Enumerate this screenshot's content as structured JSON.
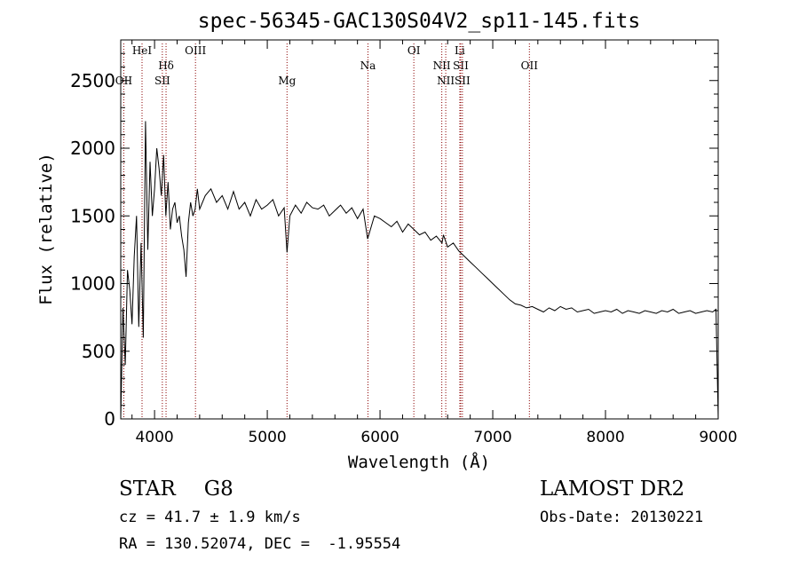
{
  "chart_data": {
    "type": "line",
    "title": "spec-56345-GAC130S04V2_sp11-145.fits",
    "xlabel": "Wavelength (Å)",
    "ylabel": "Flux (relative)",
    "xlim": [
      3700,
      9000
    ],
    "ylim": [
      0,
      2800
    ],
    "xticks": [
      "4000",
      "5000",
      "6000",
      "7000",
      "8000",
      "9000"
    ],
    "yticks": [
      "0",
      "500",
      "1000",
      "1500",
      "2000",
      "2500"
    ],
    "grid": false,
    "line_color": "#000000",
    "marker_color": "#8b0000",
    "spectrum": {
      "x": [
        3700,
        3720,
        3740,
        3760,
        3780,
        3800,
        3820,
        3840,
        3860,
        3880,
        3900,
        3920,
        3940,
        3960,
        3980,
        4000,
        4020,
        4040,
        4060,
        4080,
        4100,
        4120,
        4140,
        4160,
        4180,
        4200,
        4220,
        4240,
        4260,
        4280,
        4300,
        4320,
        4340,
        4360,
        4380,
        4400,
        4450,
        4500,
        4550,
        4600,
        4650,
        4700,
        4750,
        4800,
        4850,
        4900,
        4950,
        5000,
        5050,
        5100,
        5150,
        5175,
        5200,
        5250,
        5300,
        5350,
        5400,
        5450,
        5500,
        5550,
        5600,
        5650,
        5700,
        5750,
        5800,
        5850,
        5890,
        5950,
        6000,
        6050,
        6100,
        6150,
        6200,
        6250,
        6300,
        6350,
        6400,
        6450,
        6500,
        6550,
        6563,
        6600,
        6650,
        6700,
        6750,
        6800,
        6850,
        6900,
        6950,
        7000,
        7050,
        7100,
        7150,
        7200,
        7250,
        7300,
        7350,
        7400,
        7450,
        7500,
        7550,
        7600,
        7650,
        7700,
        7750,
        7800,
        7850,
        7900,
        7950,
        8000,
        8050,
        8100,
        8150,
        8200,
        8250,
        8300,
        8350,
        8400,
        8450,
        8500,
        8550,
        8600,
        8650,
        8700,
        8750,
        8800,
        8850,
        8900,
        8950,
        8980,
        9000
      ],
      "y": [
        0,
        820,
        400,
        1100,
        950,
        700,
        1200,
        1500,
        680,
        1300,
        600,
        2200,
        1250,
        1900,
        1500,
        1700,
        2000,
        1850,
        1650,
        1950,
        1500,
        1750,
        1400,
        1550,
        1600,
        1450,
        1500,
        1350,
        1250,
        1050,
        1450,
        1600,
        1500,
        1550,
        1700,
        1550,
        1650,
        1700,
        1600,
        1650,
        1550,
        1680,
        1550,
        1600,
        1500,
        1620,
        1550,
        1580,
        1620,
        1500,
        1560,
        1230,
        1500,
        1580,
        1520,
        1600,
        1560,
        1550,
        1580,
        1500,
        1540,
        1580,
        1520,
        1560,
        1480,
        1550,
        1330,
        1500,
        1480,
        1450,
        1420,
        1460,
        1380,
        1440,
        1400,
        1360,
        1380,
        1320,
        1350,
        1300,
        1360,
        1270,
        1300,
        1240,
        1200,
        1160,
        1120,
        1080,
        1040,
        1000,
        960,
        920,
        880,
        850,
        840,
        820,
        830,
        810,
        790,
        820,
        800,
        830,
        810,
        820,
        790,
        800,
        810,
        780,
        790,
        800,
        790,
        810,
        780,
        800,
        790,
        780,
        800,
        790,
        780,
        800,
        790,
        810,
        780,
        790,
        800,
        780,
        790,
        800,
        790,
        810,
        0
      ]
    },
    "lines": [
      {
        "label": "OII",
        "wave": 3727,
        "row": 2
      },
      {
        "label": "HeI",
        "wave": 3889,
        "row": 0
      },
      {
        "label": "Hδ",
        "wave": 4102,
        "row": 1
      },
      {
        "label": "SII",
        "wave": 4069,
        "row": 2
      },
      {
        "label": "OIII",
        "wave": 4363,
        "row": 0
      },
      {
        "label": "Mg",
        "wave": 5175,
        "row": 2
      },
      {
        "label": "Na",
        "wave": 5893,
        "row": 1
      },
      {
        "label": "OI",
        "wave": 6300,
        "row": 0
      },
      {
        "label": "NII",
        "wave": 6548,
        "row": 1
      },
      {
        "label": "NII",
        "wave": 6583,
        "row": 2
      },
      {
        "label": "Li",
        "wave": 6708,
        "row": 0
      },
      {
        "label": "SII",
        "wave": 6716,
        "row": 1
      },
      {
        "label": "SII",
        "wave": 6731,
        "row": 2
      },
      {
        "label": "OII",
        "wave": 7325,
        "row": 1
      }
    ]
  },
  "info": {
    "class_label": "STAR",
    "subclass": "G8",
    "survey": "LAMOST DR2",
    "cz": "cz = 41.7 ± 1.9 km/s",
    "obs_date": "Obs-Date: 20130221",
    "coords": "RA = 130.52074, DEC =  -1.95554"
  }
}
